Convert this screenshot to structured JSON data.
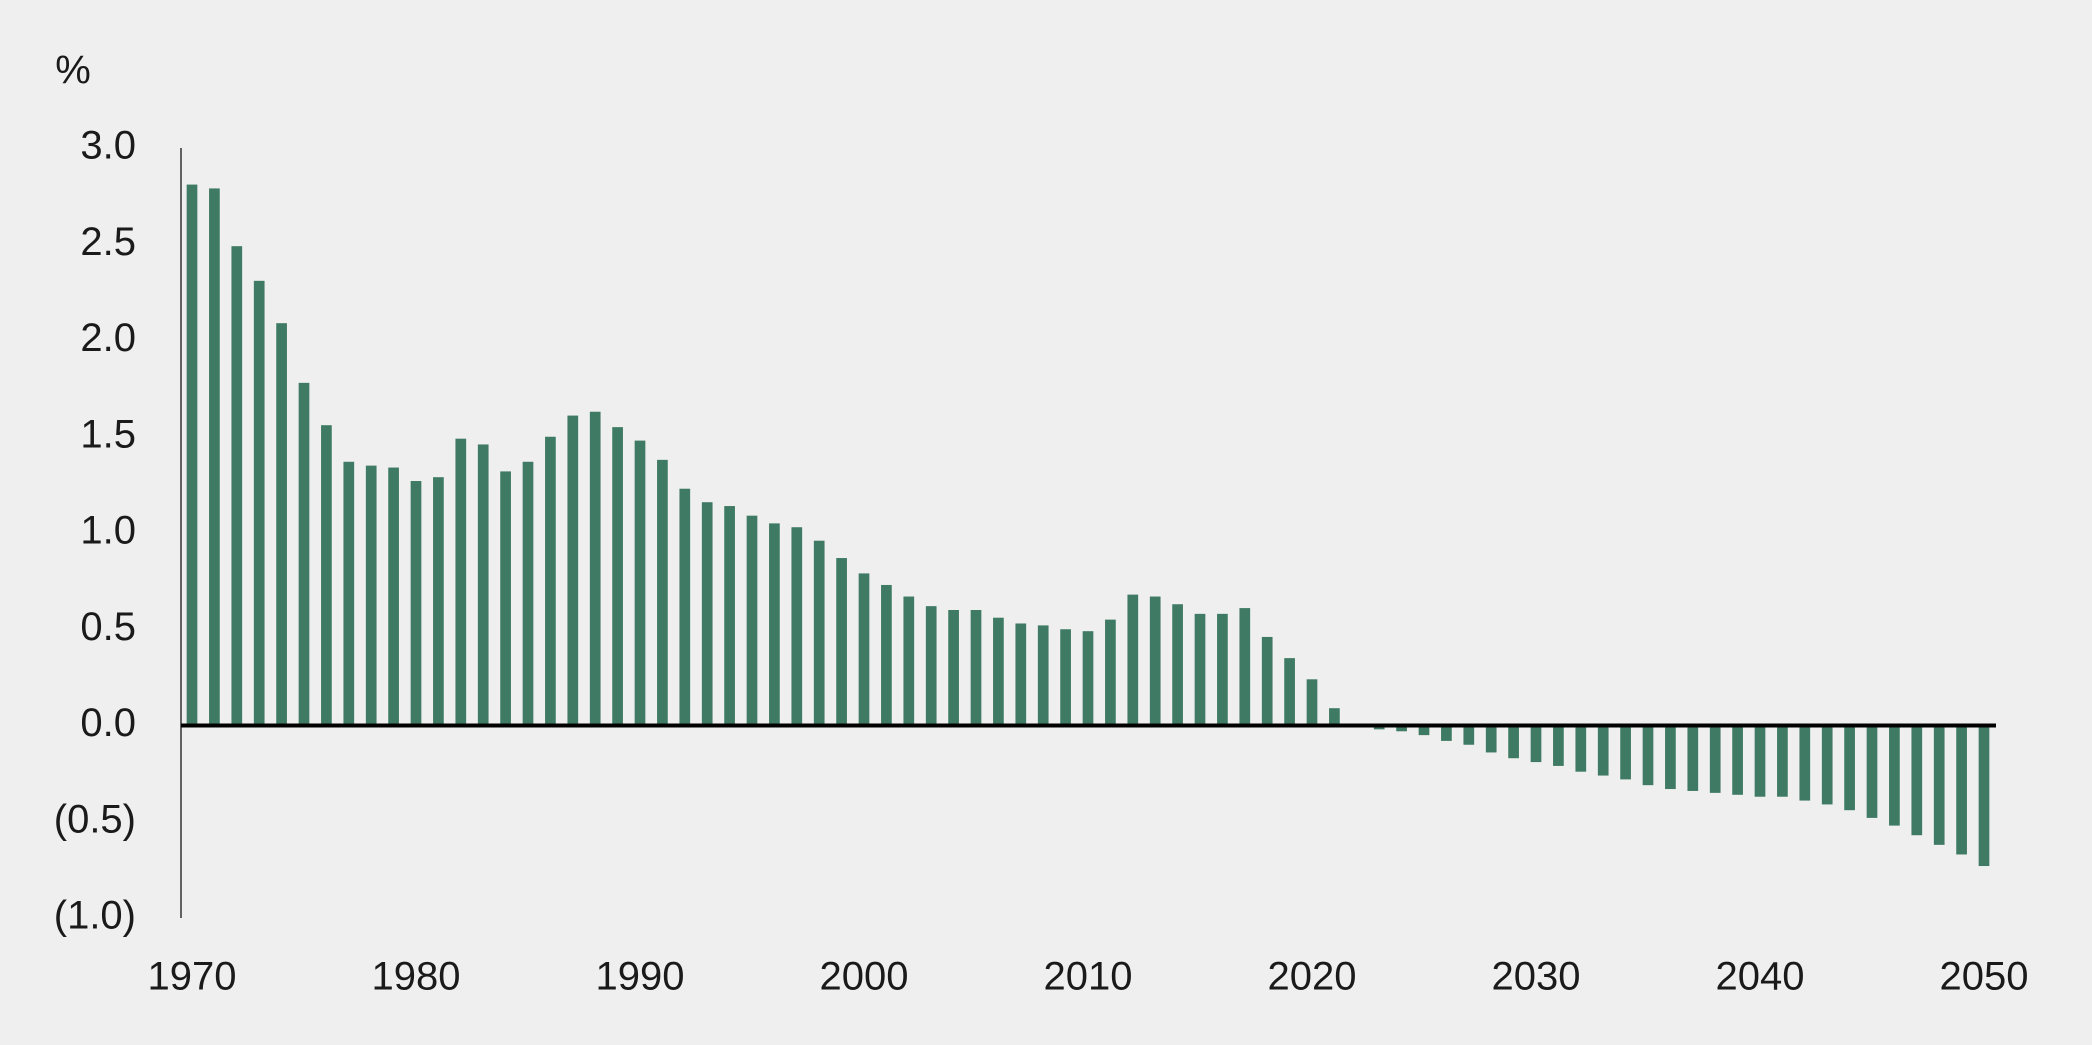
{
  "chart_data": {
    "type": "bar",
    "y_label": "%",
    "x": [
      1970,
      1971,
      1972,
      1973,
      1974,
      1975,
      1976,
      1977,
      1978,
      1979,
      1980,
      1981,
      1982,
      1983,
      1984,
      1985,
      1986,
      1987,
      1988,
      1989,
      1990,
      1991,
      1992,
      1993,
      1994,
      1995,
      1996,
      1997,
      1998,
      1999,
      2000,
      2001,
      2002,
      2003,
      2004,
      2005,
      2006,
      2007,
      2008,
      2009,
      2010,
      2011,
      2012,
      2013,
      2014,
      2015,
      2016,
      2017,
      2018,
      2019,
      2020,
      2021,
      2022,
      2023,
      2024,
      2025,
      2026,
      2027,
      2028,
      2029,
      2030,
      2031,
      2032,
      2033,
      2034,
      2035,
      2036,
      2037,
      2038,
      2039,
      2040,
      2041,
      2042,
      2043,
      2044,
      2045,
      2046,
      2047,
      2048,
      2049,
      2050
    ],
    "values": [
      2.81,
      2.79,
      2.49,
      2.31,
      2.09,
      1.78,
      1.56,
      1.37,
      1.35,
      1.34,
      1.27,
      1.29,
      1.49,
      1.46,
      1.32,
      1.37,
      1.5,
      1.61,
      1.63,
      1.55,
      1.48,
      1.38,
      1.23,
      1.16,
      1.14,
      1.09,
      1.05,
      1.03,
      0.96,
      0.87,
      0.79,
      0.73,
      0.67,
      0.62,
      0.6,
      0.6,
      0.56,
      0.53,
      0.52,
      0.5,
      0.49,
      0.55,
      0.68,
      0.67,
      0.63,
      0.58,
      0.58,
      0.61,
      0.46,
      0.35,
      0.24,
      0.09,
      -0.01,
      -0.02,
      -0.03,
      -0.05,
      -0.08,
      -0.1,
      -0.14,
      -0.17,
      -0.19,
      -0.21,
      -0.24,
      -0.26,
      -0.28,
      -0.31,
      -0.33,
      -0.34,
      -0.35,
      -0.36,
      -0.37,
      -0.37,
      -0.39,
      -0.41,
      -0.44,
      -0.48,
      -0.52,
      -0.57,
      -0.62,
      -0.67,
      -0.73
    ],
    "color": "#3f7b64",
    "xlim": [
      1970,
      2050
    ],
    "xticks": [
      1970,
      1980,
      1990,
      2000,
      2010,
      2020,
      2030,
      2040,
      2050
    ],
    "ylim": [
      -1,
      3
    ],
    "yticks": [
      {
        "value": 3,
        "label": "3.0"
      },
      2.5,
      {
        "value": 2,
        "label": "2.0"
      },
      1.5,
      {
        "value": 1,
        "label": "1.0"
      },
      0.5,
      {
        "value": 0,
        "label": "0.0"
      },
      {
        "value": -0.5,
        "label": "(0.5)"
      },
      {
        "value": -1,
        "label": "(1.0)"
      }
    ],
    "grid": false
  }
}
